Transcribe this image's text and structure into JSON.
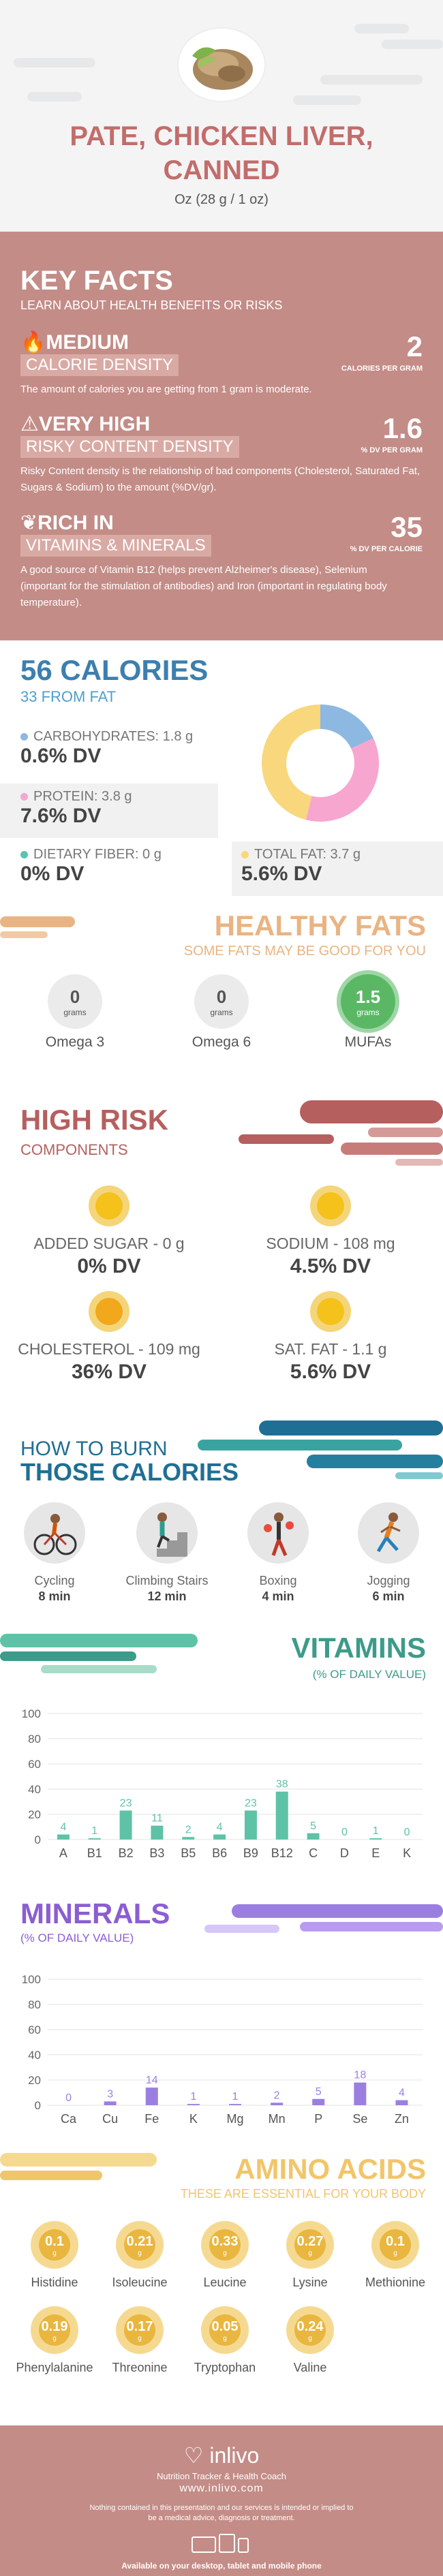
{
  "header": {
    "title_line1": "PATE, CHICKEN LIVER,",
    "title_line2": "CANNED",
    "serving": "Oz (28 g / 1 oz)"
  },
  "key_facts": {
    "heading": "KEY FACTS",
    "subheading": "LEARN ABOUT HEALTH BENEFITS OR RISKS",
    "items": [
      {
        "level": "MEDIUM",
        "label": "CALORIE DENSITY",
        "value": "2",
        "unit": "CALORIES PER GRAM",
        "desc": "The amount of calories you are getting from 1 gram is moderate."
      },
      {
        "level": "VERY HIGH",
        "label": "RISKY CONTENT DENSITY",
        "value": "1.6",
        "unit": "% DV PER GRAM",
        "desc": "Risky Content density is the relationship of bad components (Cholesterol, Saturated Fat, Sugars & Sodium) to the amount (%DV/gr)."
      },
      {
        "level": "RICH  IN",
        "label": "VITAMINS & MINERALS",
        "value": "35",
        "unit": "% DV PER CALORIE",
        "desc": "A good source of Vitamin B12 (helps prevent Alzheimer's disease), Selenium (important for the stimulation of antibodies) and Iron (important in regulating body temperature)."
      }
    ]
  },
  "calories": {
    "title": "56 CALORIES",
    "subtitle": "33 FROM FAT",
    "nutrients": [
      {
        "label": "CARBOHYDRATES: 1.8 g",
        "dv": "0.6% DV",
        "color": "#8db8e1"
      },
      {
        "label": "PROTEIN: 3.8 g",
        "dv": "7.6% DV",
        "color": "#f7a6cf"
      },
      {
        "label": "DIETARY FIBER: 0 g",
        "dv": "0% DV",
        "color": "#5bc3b2"
      },
      {
        "label": "TOTAL FAT: 3.7 g",
        "dv": "5.6% DV",
        "color": "#f8d77d"
      }
    ],
    "donut": [
      {
        "name": "carbs",
        "value": 18,
        "color": "#8db8e1"
      },
      {
        "name": "protein",
        "value": 36,
        "color": "#f7a6cf"
      },
      {
        "name": "fat",
        "value": 46,
        "color": "#f8d77d"
      }
    ]
  },
  "healthy_fats": {
    "title": "HEALTHY FATS",
    "subtitle": "SOME FATS MAY BE GOOD FOR YOU",
    "items": [
      {
        "name": "Omega 3",
        "value": "0",
        "unit": "grams"
      },
      {
        "name": "Omega 6",
        "value": "0",
        "unit": "grams"
      },
      {
        "name": "MUFAs",
        "value": "1.5",
        "unit": "grams"
      }
    ]
  },
  "high_risk": {
    "title": "HIGH RISK",
    "subtitle": "COMPONENTS",
    "items": [
      {
        "label": "ADDED SUGAR - 0 g",
        "dv": "0% DV"
      },
      {
        "label": "SODIUM - 108 mg",
        "dv": "4.5% DV"
      },
      {
        "label": "CHOLESTEROL - 109 mg",
        "dv": "36% DV"
      },
      {
        "label": "SAT. FAT - 1.1 g",
        "dv": "5.6% DV"
      }
    ]
  },
  "burn": {
    "title_line1": "HOW TO BURN",
    "title_line2": "THOSE CALORIES",
    "activities": [
      {
        "name": "Cycling",
        "time": "8 min"
      },
      {
        "name": "Climbing Stairs",
        "time": "12 min"
      },
      {
        "name": "Boxing",
        "time": "4 min"
      },
      {
        "name": "Jogging",
        "time": "6 min"
      }
    ]
  },
  "vitamins": {
    "title": "VITAMINS",
    "subtitle": "(% OF DAILY VALUE)",
    "chart_data": {
      "type": "bar",
      "categories": [
        "A",
        "B1",
        "B2",
        "B3",
        "B5",
        "B6",
        "B9",
        "B12",
        "C",
        "D",
        "E",
        "K"
      ],
      "values": [
        4,
        1,
        23,
        11,
        2,
        4,
        23,
        38,
        5,
        0,
        1,
        0
      ],
      "ylim": [
        0,
        100
      ],
      "yticks": [
        0,
        20,
        40,
        60,
        80,
        100
      ],
      "color": "#5ec2a6"
    }
  },
  "minerals": {
    "title": "MINERALS",
    "subtitle": "(% OF DAILY VALUE)",
    "chart_data": {
      "type": "bar",
      "categories": [
        "Ca",
        "Cu",
        "Fe",
        "K",
        "Mg",
        "Mn",
        "P",
        "Se",
        "Zn"
      ],
      "values": [
        0,
        3,
        14,
        1,
        1,
        2,
        5,
        18,
        4
      ],
      "ylim": [
        0,
        100
      ],
      "yticks": [
        0,
        20,
        40,
        60,
        80,
        100
      ],
      "color": "#9b7fe0"
    }
  },
  "amino": {
    "title": "AMINO ACIDS",
    "subtitle": "THESE ARE ESSENTIAL FOR YOUR BODY",
    "items": [
      {
        "name": "Histidine",
        "value": "0.1",
        "unit": "g"
      },
      {
        "name": "Isoleucine",
        "value": "0.21",
        "unit": "g"
      },
      {
        "name": "Leucine",
        "value": "0.33",
        "unit": "g"
      },
      {
        "name": "Lysine",
        "value": "0.27",
        "unit": "g"
      },
      {
        "name": "Methionine",
        "value": "0.1",
        "unit": "g"
      },
      {
        "name": "Phenylalanine",
        "value": "0.19",
        "unit": "g"
      },
      {
        "name": "Threonine",
        "value": "0.17",
        "unit": "g"
      },
      {
        "name": "Tryptophan",
        "value": "0.05",
        "unit": "g"
      },
      {
        "name": "Valine",
        "value": "0.24",
        "unit": "g"
      }
    ]
  },
  "footer": {
    "brand": "inlivo",
    "tagline": "Nutrition Tracker & Health Coach",
    "site": "www.inlivo.com",
    "disclaimer": "Nothing contained in this presentation and our services is intended or implied to be a medical advice, diagnosis or treatment.",
    "available": "Available on your desktop, tablet and mobile phone"
  }
}
